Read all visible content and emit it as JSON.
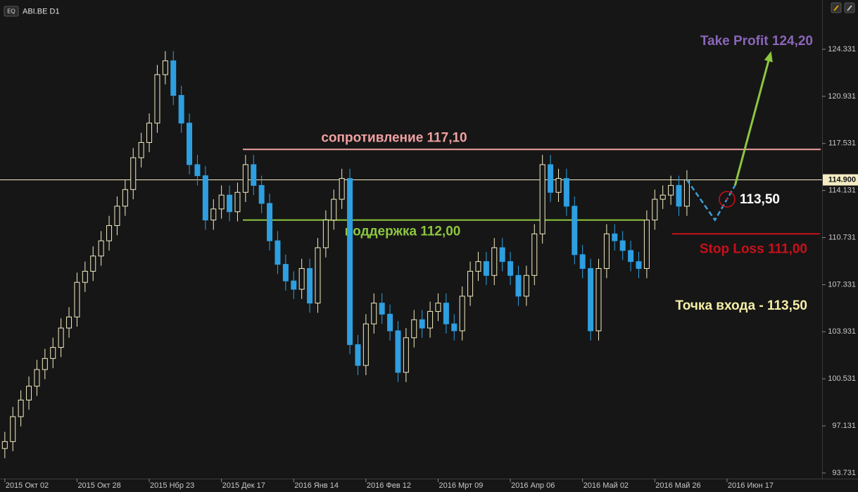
{
  "chart_data": {
    "type": "candlestick",
    "symbol": "ABI.BE D1",
    "badge": "EQ",
    "x": [
      0,
      2,
      4,
      6,
      8,
      10,
      12,
      14,
      16,
      18,
      20,
      22,
      24,
      26,
      28,
      30,
      32,
      34,
      36,
      38,
      40,
      42,
      44,
      46,
      48,
      50,
      52,
      54,
      56,
      58,
      60,
      62,
      64,
      66,
      68,
      70,
      72,
      74,
      76,
      78,
      80,
      82,
      84,
      86,
      88,
      90,
      92,
      94,
      96,
      98,
      100,
      102,
      104,
      106,
      108,
      110,
      112,
      114,
      116,
      118,
      120,
      122,
      124,
      126,
      128,
      130,
      132,
      134,
      136,
      138,
      140,
      142,
      144,
      146,
      148,
      150,
      152,
      154,
      156,
      158,
      160,
      162,
      164,
      166,
      168,
      170
    ],
    "open": [
      95.5,
      96.0,
      97.8,
      99.0,
      100.0,
      101.2,
      102.0,
      102.8,
      104.2,
      105.0,
      107.5,
      108.3,
      109.4,
      110.5,
      111.6,
      113.0,
      114.2,
      116.5,
      117.6,
      119.0,
      122.5,
      123.5,
      121.0,
      119.0,
      116.0,
      115.2,
      112.0,
      112.8,
      113.8,
      112.6,
      114.0,
      116.0,
      114.5,
      113.2,
      110.5,
      108.8,
      107.6,
      107.0,
      108.5,
      106.0,
      110.0,
      112.0,
      113.5,
      115.0,
      103.0,
      101.5,
      104.5,
      106.0,
      105.2,
      104.0,
      101.0,
      103.5,
      104.8,
      104.2,
      105.4,
      106.0,
      104.5,
      104.0,
      106.5,
      108.3,
      109.0,
      108.0,
      110.0,
      109.0,
      108.0,
      106.5,
      108.0,
      111.0,
      116.0,
      114.0,
      115.0,
      113.0,
      109.5,
      108.5,
      104.0,
      108.5,
      111.0,
      110.5,
      109.8,
      109.0,
      108.5,
      112.0,
      113.5,
      113.8,
      114.5,
      113.0
    ],
    "high": [
      96.7,
      98.5,
      99.7,
      100.7,
      101.9,
      102.7,
      103.5,
      104.9,
      105.7,
      108.2,
      109.0,
      110.1,
      111.2,
      112.3,
      113.7,
      114.9,
      117.2,
      118.3,
      119.7,
      123.2,
      124.2,
      124.2,
      121.7,
      119.7,
      116.7,
      115.9,
      113.5,
      114.5,
      114.5,
      114.7,
      116.7,
      116.7,
      115.2,
      113.9,
      111.2,
      109.5,
      108.3,
      109.2,
      109.2,
      110.7,
      112.7,
      114.2,
      115.7,
      115.7,
      103.7,
      105.2,
      106.7,
      106.7,
      105.9,
      104.7,
      104.2,
      105.5,
      105.5,
      106.1,
      106.7,
      106.7,
      105.2,
      107.2,
      109.0,
      109.7,
      109.7,
      110.7,
      110.7,
      109.7,
      108.7,
      108.7,
      111.7,
      116.7,
      116.7,
      115.7,
      115.7,
      113.7,
      110.2,
      109.2,
      109.2,
      111.7,
      111.7,
      111.2,
      110.5,
      109.7,
      112.7,
      114.2,
      114.5,
      115.2,
      115.2,
      115.6
    ],
    "low": [
      94.8,
      95.3,
      97.1,
      98.3,
      99.3,
      100.5,
      101.3,
      102.1,
      103.5,
      104.3,
      106.8,
      107.6,
      108.7,
      109.8,
      110.9,
      112.3,
      113.5,
      115.8,
      116.9,
      118.3,
      121.8,
      120.3,
      118.3,
      115.3,
      114.5,
      111.3,
      111.3,
      112.1,
      111.9,
      111.9,
      113.3,
      113.8,
      112.5,
      109.8,
      108.1,
      106.9,
      106.3,
      106.3,
      105.3,
      105.3,
      109.3,
      111.3,
      112.8,
      102.3,
      100.8,
      100.8,
      103.8,
      104.5,
      103.3,
      100.3,
      100.3,
      102.8,
      103.5,
      103.5,
      104.7,
      103.8,
      103.3,
      103.3,
      105.8,
      107.6,
      107.3,
      107.3,
      108.3,
      107.3,
      105.8,
      105.8,
      107.3,
      110.3,
      113.3,
      113.3,
      112.3,
      108.8,
      107.8,
      103.3,
      103.3,
      107.8,
      109.8,
      109.1,
      108.3,
      107.8,
      107.8,
      111.3,
      112.8,
      113.1,
      112.3,
      112.3
    ],
    "close": [
      96.0,
      97.8,
      99.0,
      100.0,
      101.2,
      102.0,
      102.8,
      104.2,
      105.0,
      107.5,
      108.3,
      109.4,
      110.5,
      111.6,
      113.0,
      114.2,
      116.5,
      117.6,
      119.0,
      122.5,
      123.5,
      121.0,
      119.0,
      116.0,
      115.2,
      112.0,
      112.8,
      113.8,
      112.6,
      114.0,
      116.0,
      114.5,
      113.2,
      110.5,
      108.8,
      107.6,
      107.0,
      108.5,
      106.0,
      110.0,
      112.0,
      113.5,
      115.0,
      103.0,
      101.5,
      104.5,
      106.0,
      105.2,
      104.0,
      101.0,
      103.5,
      104.8,
      104.2,
      105.4,
      106.0,
      104.5,
      104.0,
      106.5,
      108.3,
      109.0,
      108.0,
      110.0,
      109.0,
      108.0,
      106.5,
      108.0,
      111.0,
      116.0,
      114.0,
      115.0,
      113.0,
      109.5,
      108.5,
      104.0,
      108.5,
      111.0,
      110.5,
      109.8,
      109.0,
      108.5,
      112.0,
      113.5,
      113.8,
      114.5,
      113.0,
      114.9
    ],
    "up_color": "#f3ecc2",
    "down_color": "#2e9fe0",
    "xlim": [
      -1.2,
      203.7
    ],
    "ylim": [
      93.324,
      127.89
    ],
    "yticks": [
      93.731,
      97.131,
      100.531,
      103.931,
      107.331,
      110.731,
      114.131,
      117.531,
      120.931,
      124.331
    ],
    "xticks": [
      {
        "value": 0,
        "label": "2015 Окт 02"
      },
      {
        "value": 18,
        "label": "2015 Окт 28"
      },
      {
        "value": 36,
        "label": "2015 Нбр 23"
      },
      {
        "value": 54,
        "label": "2015 Дек 17"
      },
      {
        "value": 72,
        "label": "2016 Янв 14"
      },
      {
        "value": 90,
        "label": "2016 Фев 12"
      },
      {
        "value": 108,
        "label": "2016 Мрт 09"
      },
      {
        "value": 126,
        "label": "2016 Апр 06"
      },
      {
        "value": 144,
        "label": "2016 Май 02"
      },
      {
        "value": 162,
        "label": "2016 Май 26"
      },
      {
        "value": 180,
        "label": "2016 Июн 17"
      }
    ],
    "last_price": {
      "value": 114.9,
      "label": "114.900"
    },
    "resistance": {
      "value": 117.1,
      "label": "сопротивление 117,10",
      "color": "#f0a0a0"
    },
    "support": {
      "value": 112.0,
      "label": "поддержка 112,00",
      "color": "#8dc63f"
    },
    "stop_loss": {
      "value": 111.0,
      "label": "Stop Loss 111,00",
      "color": "#c8101a"
    },
    "take_profit": {
      "x": 191,
      "value": 124.2,
      "label": "Take Profit 124,20",
      "color": "#8a66b8"
    },
    "entry": {
      "x": 180,
      "value": 113.5,
      "label": "113,50",
      "note": "Точка входа - 113,50",
      "color": "#c8101a"
    },
    "projection": {
      "x": [
        170,
        177,
        182
      ],
      "values": [
        114.9,
        112.0,
        114.5
      ],
      "color": "#3aa0d8"
    }
  }
}
